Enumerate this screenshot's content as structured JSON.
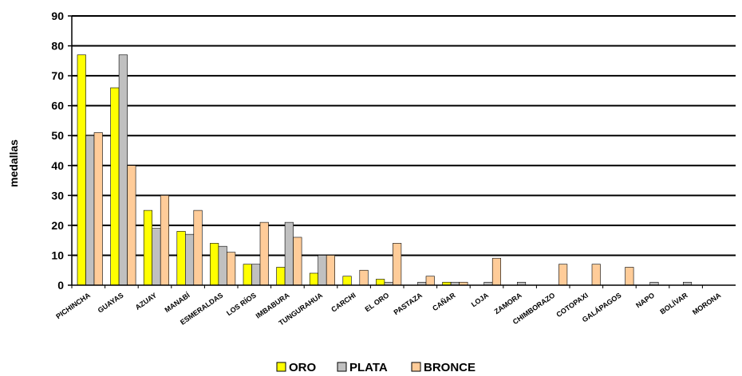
{
  "chart_data": {
    "type": "bar",
    "ylabel": "medallas",
    "ylim": [
      0,
      90
    ],
    "yticks": [
      "0",
      "10",
      "20",
      "30",
      "40",
      "50",
      "60",
      "70",
      "80",
      "90"
    ],
    "grid": true,
    "legend_position": "bottom",
    "categories": [
      "PICHINCHA",
      "GUAYAS",
      "AZUAY",
      "MANABÍ",
      "ESMERALDAS",
      "LOS RÍOS",
      "IMBABURA",
      "TUNGURAHUA",
      "CARCHI",
      "EL ORO",
      "PASTAZA",
      "CAÑAR",
      "LOJA",
      "ZAMORA",
      "CHIMBORAZO",
      "COTOPAXI",
      "GALÁPAGOS",
      "NAPO",
      "BOLÍVAR",
      "MORONA"
    ],
    "series": [
      {
        "name": "ORO",
        "color": "#ffff00",
        "values": [
          77,
          66,
          25,
          18,
          14,
          7,
          6,
          4,
          3,
          2,
          0,
          1,
          0,
          0,
          0,
          0,
          0,
          0,
          0,
          0
        ]
      },
      {
        "name": "PLATA",
        "color": "#c0c0c0",
        "values": [
          50,
          77,
          19,
          17,
          13,
          7,
          21,
          10,
          0,
          1,
          1,
          1,
          1,
          1,
          0,
          0,
          0,
          1,
          1,
          0
        ]
      },
      {
        "name": "BRONCE",
        "color": "#ffcc99",
        "values": [
          51,
          40,
          30,
          25,
          11,
          21,
          16,
          10,
          5,
          14,
          3,
          1,
          9,
          0,
          7,
          7,
          6,
          0,
          0,
          0
        ]
      }
    ]
  }
}
